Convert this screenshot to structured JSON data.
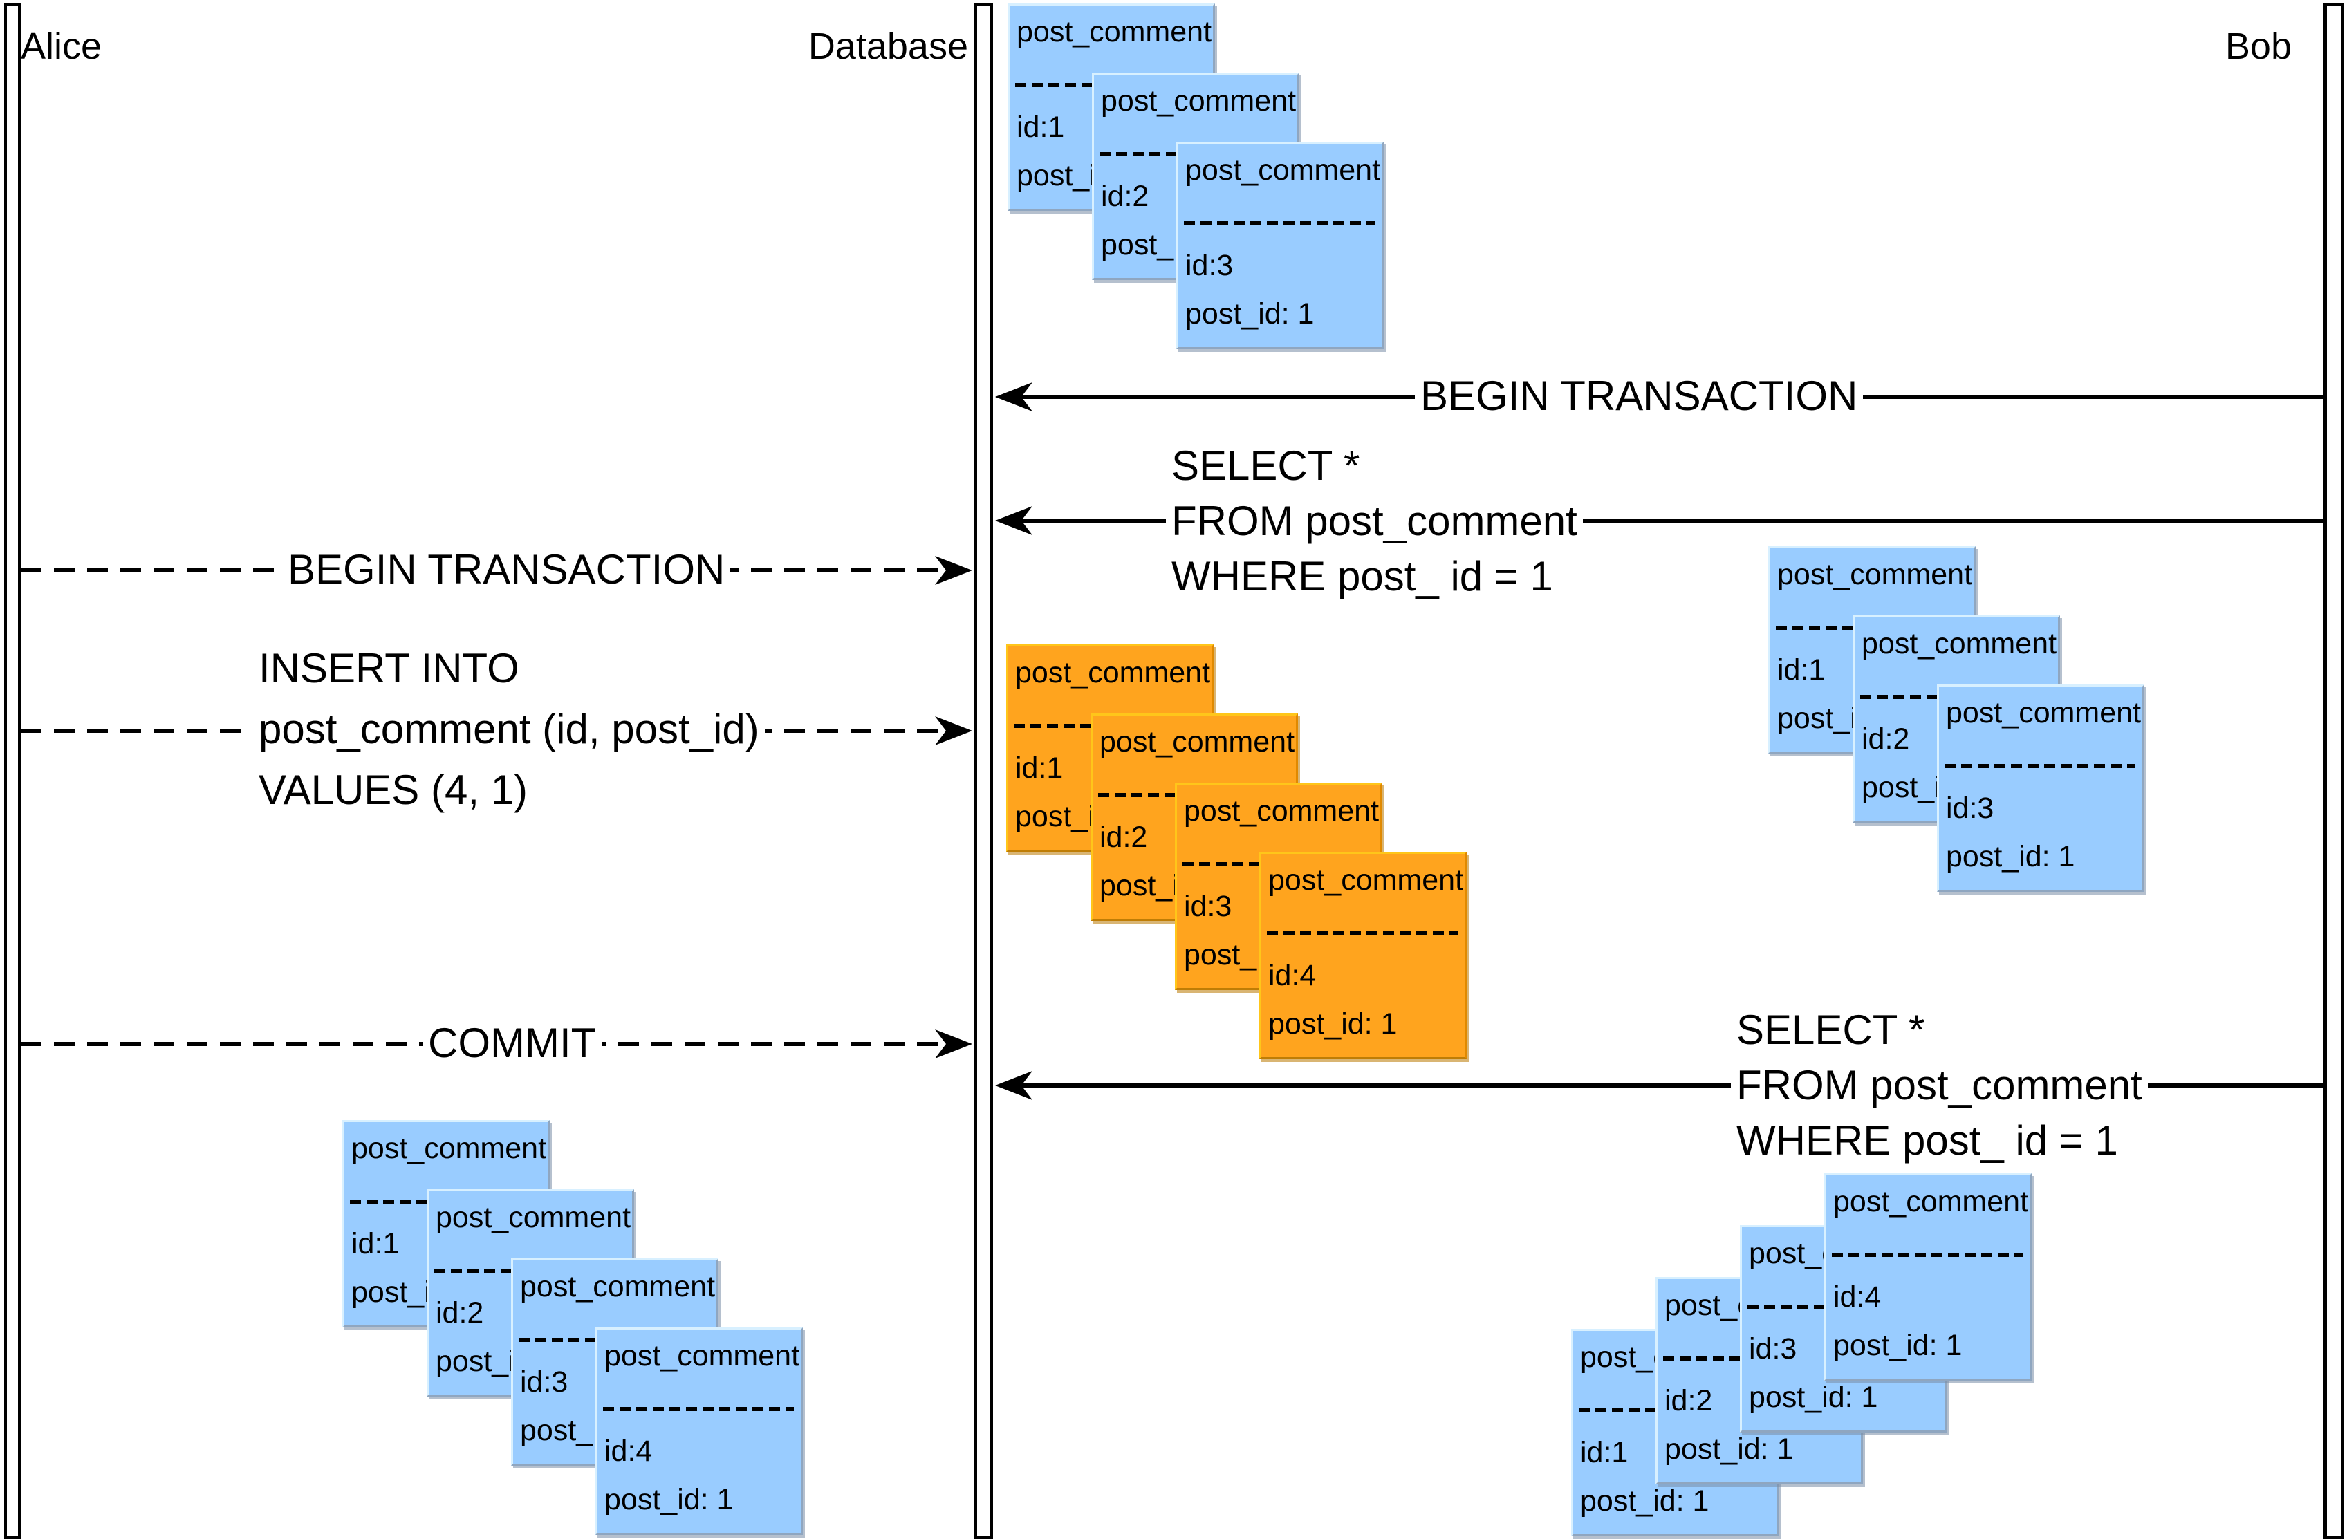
{
  "actors": {
    "alice": {
      "label": "Alice",
      "bar_color": "#FFA41E"
    },
    "database": {
      "label": "Database",
      "bar_color": "#99CCFF"
    },
    "bob": {
      "label": "Bob",
      "bar_color": "#98C21D"
    }
  },
  "colors": {
    "blue_card": "#99CCFF",
    "orange_card": "#FFA41E",
    "line": "#000000"
  },
  "messages": {
    "bob_begin_transaction": "BEGIN TRANSACTION",
    "alice_begin_transaction": "BEGIN TRANSACTION",
    "commit": "COMMIT",
    "bob_select_first": [
      "SELECT *",
      "FROM post_comment",
      "WHERE post_ id = 1"
    ],
    "bob_select_second": [
      "SELECT *",
      "FROM post_comment",
      "WHERE post_ id = 1"
    ],
    "alice_insert": [
      "INSERT INTO",
      "post_comment (id, post_id)",
      "VALUES (4, 1)"
    ]
  },
  "card_stacks": {
    "db_initial": {
      "color": "blue",
      "cards": [
        {
          "table": "post_comment",
          "id": "id:1",
          "post_id": "post_id: 1"
        },
        {
          "table": "post_comment",
          "id": "id:2",
          "post_id": "post_id: 1"
        },
        {
          "table": "post_comment",
          "id": "id:3",
          "post_id": "post_id: 1"
        }
      ]
    },
    "bob_first_select": {
      "color": "blue",
      "cards": [
        {
          "table": "post_comment",
          "id": "id:1",
          "post_id": "post_id: 1"
        },
        {
          "table": "post_comment",
          "id": "id:2",
          "post_id": "post_id: 1"
        },
        {
          "table": "post_comment",
          "id": "id:3",
          "post_id": "post_id: 1"
        }
      ]
    },
    "db_after_insert": {
      "color": "orange",
      "cards": [
        {
          "table": "post_comment",
          "id": "id:1",
          "post_id": "post_id: 1"
        },
        {
          "table": "post_comment",
          "id": "id:2",
          "post_id": "post_id: 1"
        },
        {
          "table": "post_comment",
          "id": "id:3",
          "post_id": "post_id: 1"
        },
        {
          "table": "post_comment",
          "id": "id:4",
          "post_id": "post_id: 1"
        }
      ]
    },
    "alice_after_commit": {
      "color": "blue",
      "cards": [
        {
          "table": "post_comment",
          "id": "id:1",
          "post_id": "post_id: 1"
        },
        {
          "table": "post_comment",
          "id": "id:2",
          "post_id": "post_id: 1"
        },
        {
          "table": "post_comment",
          "id": "id:3",
          "post_id": "post_id: 1"
        },
        {
          "table": "post_comment",
          "id": "id:4",
          "post_id": "post_id: 1"
        }
      ]
    },
    "bob_second_select": {
      "color": "blue",
      "cards": [
        {
          "table": "post_comment",
          "id": "id:1",
          "post_id": "post_id: 1"
        },
        {
          "table": "post_comment",
          "id": "id:2",
          "post_id": "post_id: 1"
        },
        {
          "table": "post_comment",
          "id": "id:3",
          "post_id": "post_id: 1"
        },
        {
          "table": "post_comment",
          "id": "id:4",
          "post_id": "post_id: 1"
        }
      ]
    }
  }
}
